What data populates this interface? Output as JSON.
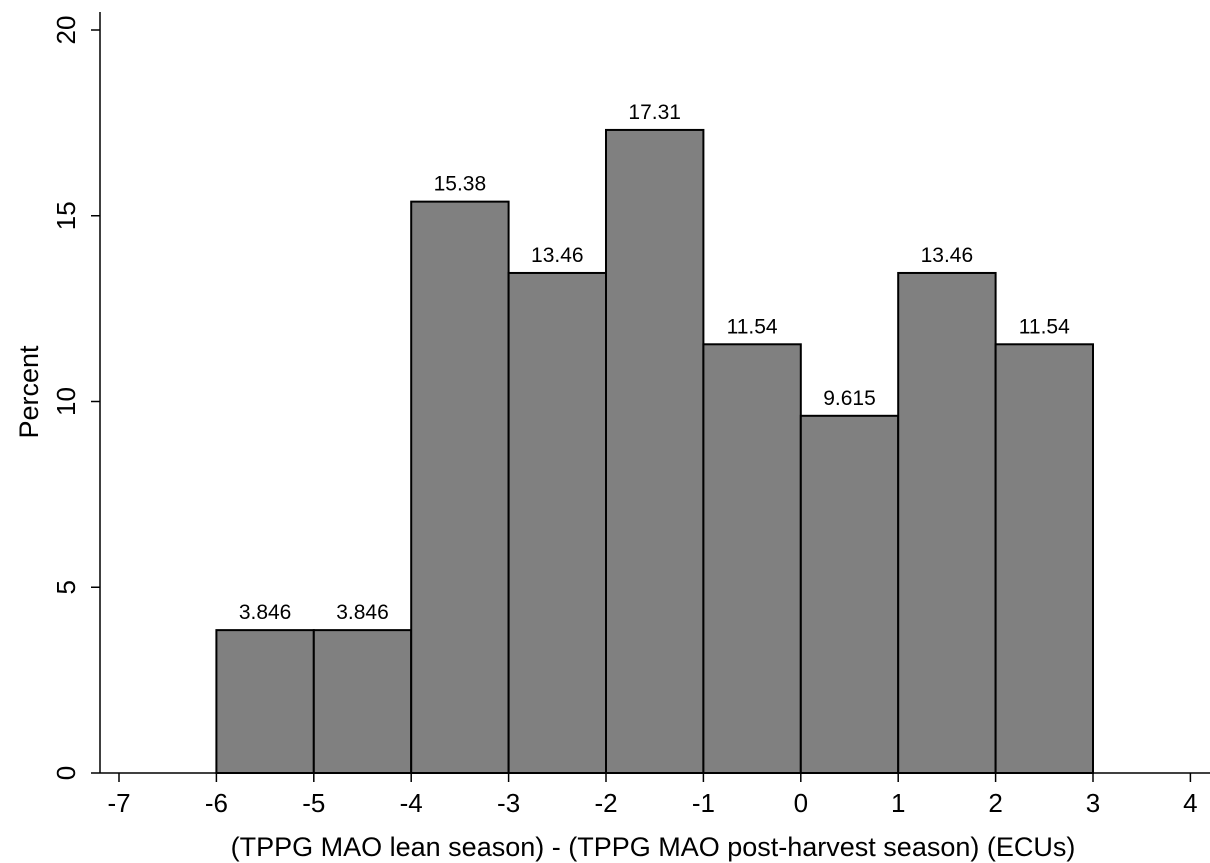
{
  "chart_data": {
    "type": "bar",
    "histogram": true,
    "bin_edges": [
      -6,
      -5,
      -4,
      -3,
      -2,
      -1,
      0,
      1,
      2,
      3
    ],
    "values": [
      3.846,
      3.846,
      15.38,
      13.46,
      17.31,
      11.54,
      9.615,
      13.46,
      11.54
    ],
    "data_labels": [
      "3.846",
      "3.846",
      "15.38",
      "13.46",
      "17.31",
      "11.54",
      "9.615",
      "13.46",
      "11.54"
    ],
    "xlabel": "(TPPG MAO lean season) - (TPPG MAO post-harvest season) (ECUs)",
    "ylabel": "Percent",
    "xlim": [
      -7,
      4
    ],
    "ylim": [
      0,
      20
    ],
    "x_ticks": [
      -7,
      -6,
      -5,
      -4,
      -3,
      -2,
      -1,
      0,
      1,
      2,
      3,
      4
    ],
    "y_ticks": [
      0,
      5,
      10,
      15,
      20
    ],
    "grid": false,
    "colors": {
      "bar_fill": "#808080",
      "bar_edge": "#000000"
    }
  }
}
